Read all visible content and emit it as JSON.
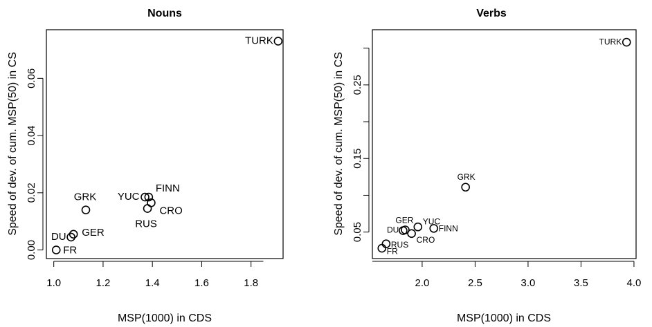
{
  "chart_data": [
    {
      "type": "scatter",
      "title": "Nouns",
      "xlabel": "MSP(1000) in CDS",
      "ylabel": "Speed of dev. of cum. MSP(50) in CS",
      "xlim": [
        0.97,
        1.93
      ],
      "ylim": [
        -0.003,
        0.077
      ],
      "x_ticks": [
        1.0,
        1.2,
        1.4,
        1.6,
        1.8
      ],
      "x_tick_labels": [
        "1.0",
        "1.2",
        "1.4",
        "1.6",
        "1.8"
      ],
      "y_ticks": [
        0.0,
        0.02,
        0.04,
        0.06
      ],
      "y_tick_labels": [
        "0.00",
        "0.02",
        "0.04",
        "0.06"
      ],
      "grid": false,
      "points": [
        {
          "label": "TURK",
          "x": 1.91,
          "y": 0.073,
          "label_dx": -7,
          "label_dy": 0,
          "anchor": "end"
        },
        {
          "label": "FINN",
          "x": 1.385,
          "y": 0.0185,
          "label_dx": 10,
          "label_dy": -12,
          "anchor": "start"
        },
        {
          "label": "YUC",
          "x": 1.37,
          "y": 0.0185,
          "label_dx": -8,
          "label_dy": 0,
          "anchor": "end"
        },
        {
          "label": "CRO",
          "x": 1.395,
          "y": 0.0165,
          "label_dx": 12,
          "label_dy": 12,
          "anchor": "start"
        },
        {
          "label": "RUS",
          "x": 1.38,
          "y": 0.0145,
          "label_dx": -2,
          "label_dy": 23,
          "anchor": "middle"
        },
        {
          "label": "GRK",
          "x": 1.13,
          "y": 0.014,
          "label_dx": -1,
          "label_dy": -18,
          "anchor": "middle"
        },
        {
          "label": "GER",
          "x": 1.08,
          "y": 0.0055,
          "label_dx": 12,
          "label_dy": -2,
          "anchor": "start"
        },
        {
          "label": "DU",
          "x": 1.07,
          "y": 0.0045,
          "label_dx": -7,
          "label_dy": 0,
          "anchor": "end"
        },
        {
          "label": "FR",
          "x": 1.01,
          "y": 0.0,
          "label_dx": 10,
          "label_dy": 1,
          "anchor": "start"
        }
      ]
    },
    {
      "type": "scatter",
      "title": "Verbs",
      "xlabel": "MSP(1000) in CDS",
      "ylabel": "Speed of dev. of cum. MSP(50) in CS",
      "xlim": [
        1.53,
        4.02
      ],
      "ylim": [
        0.014,
        0.325
      ],
      "x_ticks": [
        2.0,
        2.5,
        3.0,
        3.5,
        4.0
      ],
      "x_tick_labels": [
        "2.0",
        "2.5",
        "3.0",
        "3.5",
        "4.0"
      ],
      "y_ticks": [
        0.05,
        0.1,
        0.15,
        0.2,
        0.25,
        0.3
      ],
      "y_tick_labels": [
        "0.05",
        "",
        "0.15",
        "",
        "0.25",
        ""
      ],
      "grid": false,
      "points": [
        {
          "label": "TURK",
          "x": 3.93,
          "y": 0.308,
          "label_dx": -7,
          "label_dy": 0,
          "anchor": "end"
        },
        {
          "label": "GRK",
          "x": 2.41,
          "y": 0.111,
          "label_dx": 1,
          "label_dy": -14,
          "anchor": "middle"
        },
        {
          "label": "FINN",
          "x": 2.11,
          "y": 0.055,
          "label_dx": 7,
          "label_dy": 1,
          "anchor": "start"
        },
        {
          "label": "YUC",
          "x": 1.96,
          "y": 0.057,
          "label_dx": 7,
          "label_dy": -7,
          "anchor": "start"
        },
        {
          "label": "GER",
          "x": 1.84,
          "y": 0.053,
          "label_dx": -1,
          "label_dy": -13,
          "anchor": "middle"
        },
        {
          "label": "CRO",
          "x": 1.9,
          "y": 0.048,
          "label_dx": 7,
          "label_dy": 10,
          "anchor": "start"
        },
        {
          "label": "DU",
          "x": 1.82,
          "y": 0.052,
          "label_dx": -6,
          "label_dy": 0,
          "anchor": "end"
        },
        {
          "label": "RUS",
          "x": 1.66,
          "y": 0.034,
          "label_dx": 7,
          "label_dy": 2,
          "anchor": "start"
        },
        {
          "label": "FR",
          "x": 1.62,
          "y": 0.028,
          "label_dx": 7,
          "label_dy": 5,
          "anchor": "start"
        }
      ]
    }
  ]
}
